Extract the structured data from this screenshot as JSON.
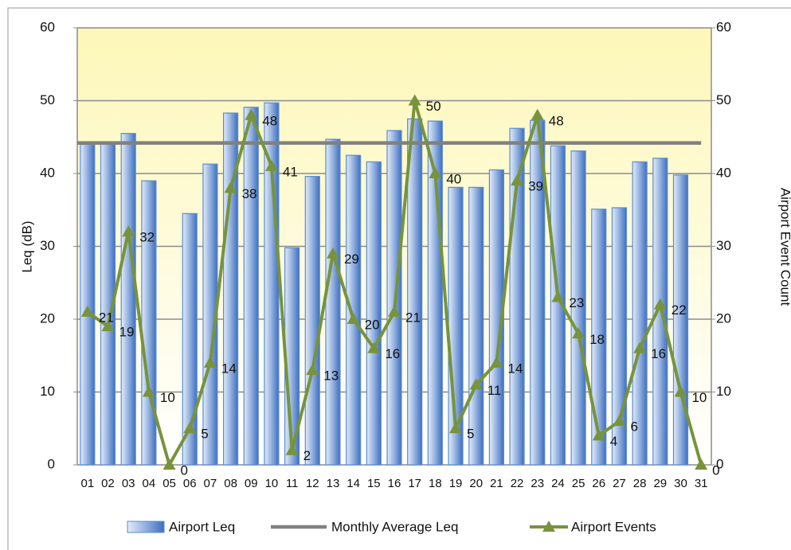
{
  "chart_data": {
    "type": "bar",
    "categories": [
      "01",
      "02",
      "03",
      "04",
      "05",
      "06",
      "07",
      "08",
      "09",
      "10",
      "11",
      "12",
      "13",
      "14",
      "15",
      "16",
      "17",
      "18",
      "19",
      "20",
      "21",
      "22",
      "23",
      "24",
      "25",
      "26",
      "27",
      "28",
      "29",
      "30",
      "31"
    ],
    "series": [
      {
        "name": "Airport Leq",
        "type": "bar",
        "color": "#5b8bd0",
        "values": [
          44,
          44.3,
          45.5,
          39,
          null,
          34.5,
          41.3,
          48.3,
          49.1,
          49.7,
          29.8,
          39.6,
          44.7,
          42.5,
          41.6,
          45.9,
          47.5,
          47.2,
          38.1,
          38.1,
          40.5,
          46.2,
          47.3,
          43.8,
          43.1,
          35.1,
          35.3,
          41.6,
          42.1,
          39.8,
          null
        ]
      },
      {
        "name": "Monthly Average Leq",
        "type": "hline",
        "color": "#808080",
        "value": 44.2
      },
      {
        "name": "Airport Events",
        "type": "line",
        "axis": "y2",
        "color": "#77933c",
        "values": [
          21,
          19,
          32,
          10,
          0,
          5,
          14,
          38,
          48,
          41,
          2,
          13,
          29,
          20,
          16,
          21,
          50,
          40,
          5,
          11,
          14,
          39,
          48,
          23,
          18,
          4,
          6,
          16,
          22,
          10,
          0
        ]
      }
    ],
    "ylabel": "Leq (dB)",
    "y2label": "Airport Event Count",
    "ylim": [
      0,
      60
    ],
    "yticks": [
      0,
      10,
      20,
      30,
      40,
      50,
      60
    ],
    "y2lim": [
      0,
      60
    ],
    "y2ticks": [
      0,
      10,
      20,
      30,
      40,
      50,
      60
    ],
    "grid": true,
    "legend": "bottom"
  }
}
